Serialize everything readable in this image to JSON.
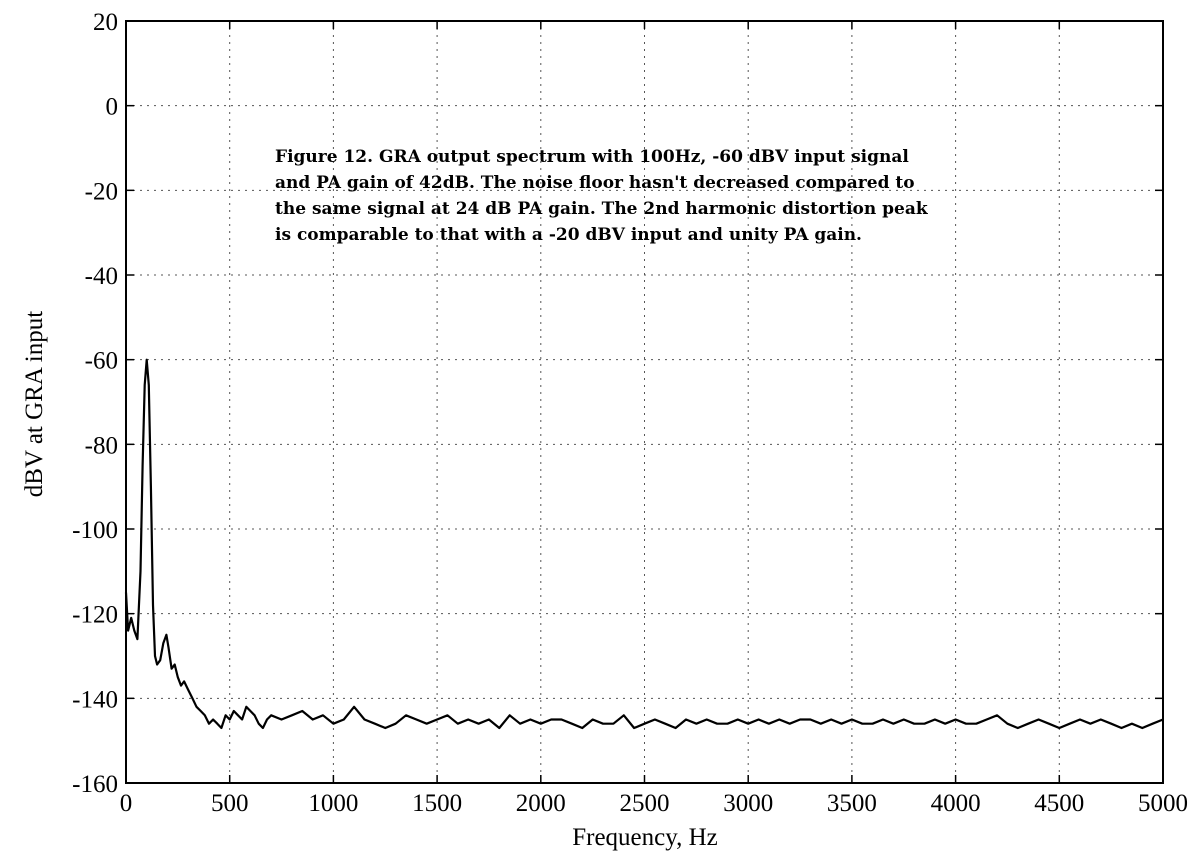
{
  "chart_data": {
    "type": "line",
    "title": "",
    "xlabel": "Frequency, Hz",
    "ylabel": "dBV at GRA input",
    "xlim": [
      0,
      5000
    ],
    "ylim": [
      -160,
      20
    ],
    "x_ticks": [
      0,
      500,
      1000,
      1500,
      2000,
      2500,
      3000,
      3500,
      4000,
      4500,
      5000
    ],
    "x_tick_labels": [
      "0",
      "500",
      "1000",
      "1500",
      "2000",
      "2500",
      "3000",
      "3500",
      "4000",
      "4500",
      "5000"
    ],
    "y_ticks": [
      20,
      0,
      -20,
      -40,
      -60,
      -80,
      -100,
      -120,
      -140,
      -160
    ],
    "y_tick_labels": [
      "20",
      "0",
      "-20",
      "-40",
      "-60",
      "-80",
      "-100",
      "-120",
      "-140",
      "-160"
    ],
    "grid": true,
    "annotation": [
      "Figure 12. GRA output spectrum with 100Hz, -60 dBV input signal",
      "and PA gain of 42dB. The noise floor hasn't decreased compared to",
      "the same signal at 24 dB PA gain. The 2nd harmonic distortion peak",
      "is comparable to that with a -20 dBV input and unity PA gain."
    ],
    "series": [
      {
        "x": [
          0,
          10,
          25,
          40,
          55,
          70,
          80,
          90,
          100,
          110,
          120,
          130,
          140,
          150,
          165,
          180,
          195,
          205,
          220,
          235,
          250,
          265,
          280,
          300,
          320,
          340,
          360,
          380,
          400,
          420,
          440,
          460,
          480,
          500,
          520,
          540,
          560,
          580,
          600,
          620,
          640,
          660,
          680,
          700,
          750,
          800,
          850,
          900,
          950,
          1000,
          1050,
          1100,
          1150,
          1200,
          1250,
          1300,
          1350,
          1400,
          1450,
          1500,
          1550,
          1600,
          1650,
          1700,
          1750,
          1800,
          1850,
          1900,
          1950,
          2000,
          2050,
          2100,
          2150,
          2200,
          2250,
          2300,
          2350,
          2400,
          2450,
          2500,
          2550,
          2600,
          2650,
          2700,
          2750,
          2800,
          2850,
          2900,
          2950,
          3000,
          3050,
          3100,
          3150,
          3200,
          3250,
          3300,
          3350,
          3400,
          3450,
          3500,
          3550,
          3600,
          3650,
          3700,
          3750,
          3800,
          3850,
          3900,
          3950,
          4000,
          4050,
          4100,
          4150,
          4200,
          4250,
          4300,
          4350,
          4400,
          4450,
          4500,
          4550,
          4600,
          4650,
          4700,
          4750,
          4800,
          4850,
          4900,
          4950,
          5000
        ],
        "y": [
          -115,
          -124,
          -121,
          -124,
          -126,
          -110,
          -85,
          -66,
          -60,
          -66,
          -90,
          -118,
          -130,
          -132,
          -131,
          -127,
          -125,
          -128,
          -133,
          -132,
          -135,
          -137,
          -136,
          -138,
          -140,
          -142,
          -143,
          -144,
          -146,
          -145,
          -146,
          -147,
          -144,
          -145,
          -143,
          -144,
          -145,
          -142,
          -143,
          -144,
          -146,
          -147,
          -145,
          -144,
          -145,
          -144,
          -143,
          -145,
          -144,
          -146,
          -145,
          -142,
          -145,
          -146,
          -147,
          -146,
          -144,
          -145,
          -146,
          -145,
          -144,
          -146,
          -145,
          -146,
          -145,
          -147,
          -144,
          -146,
          -145,
          -146,
          -145,
          -145,
          -146,
          -147,
          -145,
          -146,
          -146,
          -144,
          -147,
          -146,
          -145,
          -146,
          -147,
          -145,
          -146,
          -145,
          -146,
          -146,
          -145,
          -146,
          -145,
          -146,
          -145,
          -146,
          -145,
          -145,
          -146,
          -145,
          -146,
          -145,
          -146,
          -146,
          -145,
          -146,
          -145,
          -146,
          -146,
          -145,
          -146,
          -145,
          -146,
          -146,
          -145,
          -144,
          -146,
          -147,
          -146,
          -145,
          -146,
          -147,
          -146,
          -145,
          -146,
          -145,
          -146,
          -147,
          -146,
          -147,
          -146,
          -145
        ]
      }
    ]
  }
}
